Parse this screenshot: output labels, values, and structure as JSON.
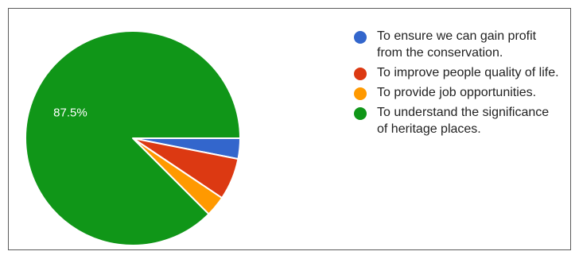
{
  "chart_data": {
    "type": "pie",
    "title": "",
    "start_angle_deg": 90,
    "slices": [
      {
        "label": "To ensure we can gain profit\nfrom the conservation.",
        "value": 3.1,
        "color": "#3366cc"
      },
      {
        "label": "To improve people quality of life.",
        "value": 6.3,
        "color": "#dc3912"
      },
      {
        "label": "To provide job opportunities.",
        "value": 3.1,
        "color": "#ff9900"
      },
      {
        "label": "To understand the significance\nof heritage places.",
        "value": 87.5,
        "color": "#109618"
      }
    ],
    "data_labels": [
      {
        "slice_index": 3,
        "text": "87.5%"
      }
    ],
    "legend_position": "right"
  }
}
